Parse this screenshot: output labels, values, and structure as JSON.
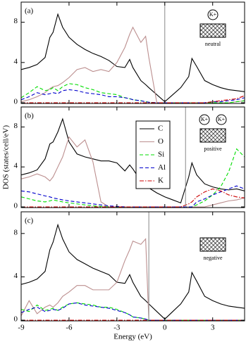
{
  "chart_data": [
    {
      "type": "line",
      "label": "(a)",
      "xlim": [
        -9,
        5
      ],
      "ylim": [
        0,
        10
      ],
      "xticks": [
        -9,
        -6,
        -3,
        0,
        3
      ],
      "yticks": [
        0,
        4,
        8
      ],
      "vline": 0,
      "inset": {
        "label": "neutral",
        "ions": [
          "K+"
        ]
      },
      "x": [
        -9,
        -8.5,
        -8,
        -7.5,
        -7.2,
        -7,
        -6.7,
        -6.4,
        -6,
        -5.5,
        -5,
        -4.5,
        -4,
        -3.5,
        -3,
        -2.5,
        -2.2,
        -2,
        -1.5,
        -1.2,
        -1,
        -0.5,
        0,
        0.5,
        1,
        1.5,
        1.7,
        2,
        2.5,
        3,
        3.5,
        4,
        4.5,
        5
      ],
      "series": [
        {
          "color": "#000000",
          "dash": "solid",
          "values": [
            3.3,
            3.5,
            3.8,
            4.5,
            6.5,
            7,
            8.8,
            7.5,
            6.5,
            5.8,
            5.3,
            4.9,
            4.6,
            4.2,
            3.6,
            3.5,
            4.3,
            3.5,
            2.2,
            1.8,
            1.5,
            0.8,
            0.1,
            0.8,
            1.5,
            2.6,
            4.4,
            3.6,
            2.2,
            1.8,
            1.5,
            1.3,
            1.2,
            1.1
          ]
        },
        {
          "color": "#bc8f8f",
          "dash": "solid",
          "values": [
            0.1,
            0.3,
            0.6,
            1,
            1.4,
            1.6,
            1.7,
            2,
            2.5,
            3.3,
            3.5,
            3.1,
            3.3,
            3.1,
            4,
            5.5,
            6.8,
            7.5,
            6,
            6.6,
            4.5,
            0,
            0,
            0,
            0,
            0,
            0,
            0,
            0,
            0,
            0,
            0,
            0.1,
            0.2
          ]
        },
        {
          "color": "#00dd00",
          "dash": "dashed",
          "values": [
            0.5,
            1,
            1.6,
            1.2,
            1.3,
            1.5,
            1.2,
            1.6,
            1.9,
            1.8,
            1.5,
            1.3,
            1,
            0.9,
            0.8,
            0.5,
            0.4,
            0.3,
            0.2,
            0.1,
            0.05,
            0,
            0,
            0,
            0,
            0,
            0,
            0,
            0,
            0,
            0,
            0,
            0.1,
            0.2
          ]
        },
        {
          "color": "#0000cc",
          "dash": "dashed",
          "values": [
            0.3,
            0.6,
            1,
            0.8,
            0.9,
            1,
            0.9,
            1.2,
            1.3,
            1.2,
            1,
            0.9,
            0.8,
            0.6,
            0.6,
            0.5,
            0.4,
            0.3,
            0.2,
            0.1,
            0.05,
            0,
            0,
            0,
            0,
            0,
            0,
            0,
            0,
            0.1,
            0.1,
            0.2,
            0.3,
            0.5
          ]
        },
        {
          "color": "#cc0000",
          "dash": "dashdot",
          "values": [
            0,
            0,
            0,
            0,
            0,
            0,
            0,
            0,
            0,
            0,
            0,
            0,
            0,
            0,
            0,
            0,
            0,
            0,
            0,
            0,
            0,
            0,
            0,
            0,
            0,
            0,
            0,
            0,
            0,
            0.1,
            0.2,
            0.3,
            0.4,
            0.7
          ]
        }
      ]
    },
    {
      "type": "line",
      "label": "(b)",
      "xlim": [
        -9,
        5
      ],
      "ylim": [
        0,
        10
      ],
      "xticks": [
        -9,
        -6,
        -3,
        0,
        3
      ],
      "yticks": [
        0,
        4,
        8
      ],
      "vline": 1.3,
      "ylabel": "DOS (states/cell/eV)",
      "legend": true,
      "inset": {
        "label": "positive",
        "ions": [
          "K+",
          "K+"
        ]
      },
      "x": [
        -9,
        -8.5,
        -8,
        -7.5,
        -7.2,
        -7,
        -6.7,
        -6.4,
        -6,
        -5.5,
        -5,
        -4.5,
        -4,
        -3.5,
        -3,
        -2.5,
        -2.2,
        -2,
        -1.5,
        -1.2,
        -1,
        -0.5,
        0,
        0.5,
        1,
        1.5,
        1.7,
        2,
        2.5,
        3,
        3.5,
        4,
        4.5,
        5
      ],
      "series": [
        {
          "name": "C",
          "color": "#000000",
          "dash": "solid",
          "values": [
            3.2,
            3.4,
            3.7,
            4.8,
            6.3,
            6.5,
            7.5,
            8.8,
            6.5,
            5.3,
            5,
            4.8,
            4.6,
            4.6,
            4.4,
            3.6,
            4.2,
            3.8,
            2.6,
            2.2,
            1.9,
            1.4,
            1,
            0.7,
            0.4,
            3,
            4.4,
            3.2,
            2.3,
            2,
            1.8,
            1.7,
            1.8,
            1.6
          ]
        },
        {
          "name": "O",
          "color": "#bc8f8f",
          "dash": "solid",
          "values": [
            2.8,
            3,
            3.3,
            3,
            2.6,
            3,
            4,
            5,
            7,
            6,
            6.7,
            4.5,
            0.5,
            0,
            0,
            0,
            0,
            0,
            0,
            0,
            0,
            0,
            0,
            0,
            0,
            0,
            0,
            0,
            0,
            0.2,
            0.4,
            0.6,
            0.7,
            0.9
          ]
        },
        {
          "name": "Si",
          "color": "#00dd00",
          "dash": "dashed",
          "values": [
            1,
            0.8,
            0.6,
            0.5,
            0.6,
            0.7,
            0.6,
            0.5,
            0.4,
            0.3,
            0.2,
            0.1,
            0.05,
            0,
            0,
            0,
            0,
            0,
            0,
            0,
            0,
            0,
            0,
            0,
            0,
            0,
            0,
            0.2,
            0.6,
            1.2,
            2,
            3.5,
            5.8,
            5
          ]
        },
        {
          "name": "Al",
          "color": "#0000cc",
          "dash": "dashed",
          "values": [
            1.6,
            1.5,
            1.3,
            1.1,
            1,
            0.9,
            0.8,
            0.7,
            0.6,
            0.5,
            0.4,
            0.3,
            0.2,
            0.1,
            0.05,
            0,
            0,
            0,
            0,
            0,
            0,
            0,
            0,
            0,
            0,
            0,
            0,
            0.5,
            0.8,
            1.2,
            1.5,
            1.8,
            2.1,
            1.8
          ]
        },
        {
          "name": "K",
          "color": "#cc0000",
          "dash": "dashdot",
          "values": [
            0,
            0,
            0,
            0,
            0,
            0,
            0,
            0,
            0,
            0,
            0,
            0,
            0,
            0,
            0,
            0,
            0,
            0,
            0,
            0,
            0,
            0,
            0,
            0,
            0,
            0.3,
            0.5,
            1,
            1.5,
            1.8,
            1.6,
            1.2,
            1,
            0.9
          ]
        }
      ]
    },
    {
      "type": "line",
      "label": "(c)",
      "xlim": [
        -9,
        5
      ],
      "ylim": [
        0,
        10
      ],
      "xticks": [
        -9,
        -6,
        -3,
        0,
        3
      ],
      "yticks": [
        0,
        4,
        8
      ],
      "vline": -1,
      "xlabel": "Energy (eV)",
      "inset": {
        "label": "negative",
        "ions": []
      },
      "x": [
        -9,
        -8.5,
        -8,
        -7.5,
        -7.2,
        -7,
        -6.7,
        -6.4,
        -6,
        -5.5,
        -5,
        -4.5,
        -4,
        -3.5,
        -3,
        -2.5,
        -2.2,
        -2,
        -1.5,
        -1.2,
        -1,
        -0.5,
        0,
        0.5,
        1,
        1.5,
        1.7,
        2,
        2.5,
        3,
        3.5,
        4,
        4.5,
        5
      ],
      "series": [
        {
          "color": "#000000",
          "dash": "solid",
          "values": [
            3.3,
            3.5,
            3.8,
            4.5,
            6.5,
            7.2,
            8.8,
            7.5,
            6.3,
            5.6,
            5.2,
            4.8,
            4.5,
            4.2,
            3.5,
            3.4,
            4.2,
            3.5,
            2.2,
            1.8,
            1.5,
            0.8,
            0.1,
            0.8,
            1.5,
            2.6,
            4.4,
            3.6,
            2.2,
            1.8,
            1.5,
            1.3,
            1.2,
            1.1
          ]
        },
        {
          "color": "#bc8f8f",
          "dash": "solid",
          "values": [
            0.4,
            1.8,
            0.6,
            1.2,
            1.4,
            1.2,
            1.6,
            2.2,
            2.6,
            3.2,
            3.2,
            2.8,
            2.8,
            2.8,
            3.5,
            5.5,
            6.5,
            7.3,
            7,
            7.5,
            0,
            0,
            0,
            0,
            0,
            0,
            0,
            0,
            0,
            0,
            0,
            0,
            0,
            0
          ]
        },
        {
          "color": "#00dd00",
          "dash": "dashed",
          "values": [
            1,
            0.8,
            1.4,
            0.9,
            1,
            1.1,
            0.9,
            1.2,
            1.5,
            1.6,
            1.5,
            1.4,
            1.2,
            1.2,
            1,
            0.7,
            0.5,
            0.3,
            0.2,
            0.1,
            0,
            0,
            0,
            0,
            0,
            0,
            0,
            0,
            0,
            0,
            0,
            0,
            0,
            0
          ]
        },
        {
          "color": "#0000cc",
          "dash": "dashed",
          "values": [
            0.7,
            1,
            1.2,
            0.8,
            0.9,
            1,
            0.9,
            1.1,
            1.5,
            1.6,
            1.4,
            1.3,
            1.2,
            1.1,
            0.9,
            0.7,
            0.5,
            0.3,
            0.2,
            0.1,
            0,
            0,
            0,
            0,
            0,
            0,
            0,
            0,
            0,
            0,
            0,
            0,
            0,
            0
          ]
        },
        {
          "color": "#cc0000",
          "dash": "dashdot",
          "values": [
            0,
            0,
            0,
            0,
            0,
            0,
            0,
            0,
            0,
            0,
            0,
            0,
            0,
            0,
            0,
            0,
            0,
            0,
            0,
            0,
            0,
            0,
            0,
            0,
            0,
            0,
            0,
            0,
            0,
            0,
            0,
            0,
            0,
            0
          ]
        }
      ]
    }
  ]
}
